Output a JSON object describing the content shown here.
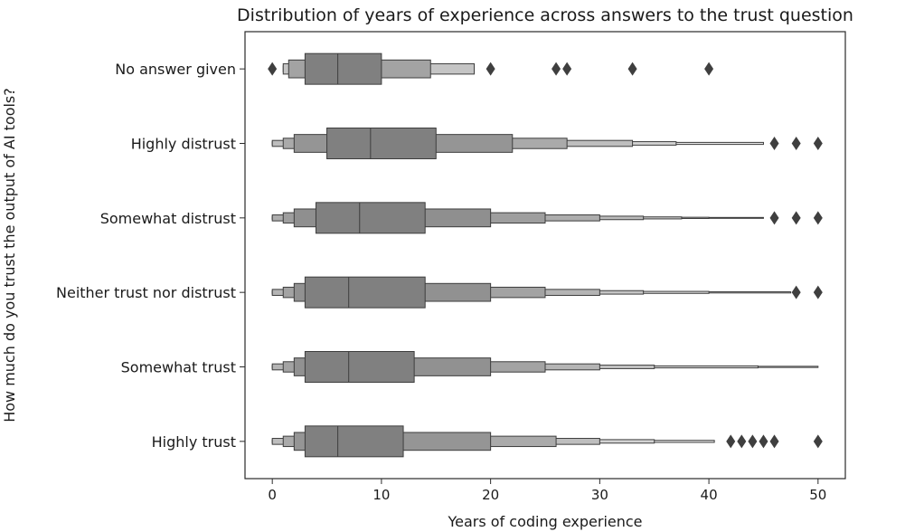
{
  "chart_data": {
    "type": "boxen",
    "orientation": "horizontal",
    "title": "Distribution of years of experience across answers to the trust question",
    "xlabel": "Years of coding experience",
    "ylabel": "How much do you trust the output of AI tools?",
    "xlim": [
      -2.5,
      52.5
    ],
    "xticks": [
      0,
      10,
      20,
      30,
      40,
      50
    ],
    "grid": false,
    "legend": "none",
    "colors": {
      "box": "#808080",
      "box_light": "#b8b8b8",
      "box_lightest": "#ebebeb",
      "edge": "#3d3d3d",
      "outlier": "#3f3f3f"
    },
    "series": [
      {
        "category": "No answer given",
        "median": 6,
        "levels": [
          [
            3,
            10
          ],
          [
            1.5,
            14.5
          ],
          [
            1,
            18.5
          ],
          [
            1,
            18.5
          ]
        ],
        "outliers": [
          0,
          20,
          26,
          27,
          33,
          40
        ]
      },
      {
        "category": "Highly distrust",
        "median": 9,
        "levels": [
          [
            5,
            15
          ],
          [
            2,
            22
          ],
          [
            1,
            27
          ],
          [
            0,
            33
          ],
          [
            0,
            37
          ],
          [
            0,
            45
          ]
        ],
        "outliers": [
          46,
          48,
          50
        ]
      },
      {
        "category": "Somewhat distrust",
        "median": 8,
        "levels": [
          [
            4,
            14
          ],
          [
            2,
            20
          ],
          [
            1,
            25
          ],
          [
            0,
            30
          ],
          [
            0,
            34
          ],
          [
            0,
            37.5
          ],
          [
            0,
            40
          ],
          [
            0,
            45
          ]
        ],
        "outliers": [
          46,
          48,
          50
        ]
      },
      {
        "category": "Neither trust nor distrust",
        "median": 7,
        "levels": [
          [
            3,
            14
          ],
          [
            2,
            20
          ],
          [
            1,
            25
          ],
          [
            0,
            30
          ],
          [
            0,
            34
          ],
          [
            0,
            40
          ],
          [
            0,
            47.5
          ]
        ],
        "outliers": [
          48,
          50
        ]
      },
      {
        "category": "Somewhat trust",
        "median": 7,
        "levels": [
          [
            3,
            13
          ],
          [
            2,
            20
          ],
          [
            1,
            25
          ],
          [
            0,
            30
          ],
          [
            0,
            35
          ],
          [
            0,
            44.5
          ],
          [
            0,
            50
          ]
        ],
        "outliers": []
      },
      {
        "category": "Highly trust",
        "median": 6,
        "levels": [
          [
            3,
            12
          ],
          [
            2,
            20
          ],
          [
            1,
            26
          ],
          [
            0,
            30
          ],
          [
            0,
            35
          ],
          [
            0,
            40.5
          ]
        ],
        "outliers": [
          42,
          43,
          44,
          45,
          46,
          50
        ]
      }
    ]
  }
}
